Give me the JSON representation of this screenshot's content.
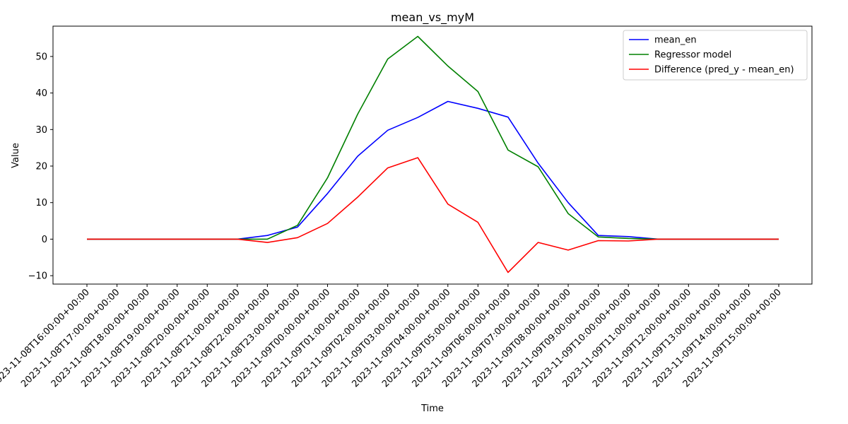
{
  "chart_data": {
    "type": "line",
    "title": "mean_vs_myM",
    "xlabel": "Time",
    "ylabel": "Value",
    "ylim": [
      -12.3,
      58.3
    ],
    "yticks": [
      -10,
      0,
      10,
      20,
      30,
      40,
      50
    ],
    "grid": false,
    "legend_position": "upper right",
    "x": [
      "2023-11-08T16:00:00+00:00",
      "2023-11-08T17:00:00+00:00",
      "2023-11-08T18:00:00+00:00",
      "2023-11-08T19:00:00+00:00",
      "2023-11-08T20:00:00+00:00",
      "2023-11-08T21:00:00+00:00",
      "2023-11-08T22:00:00+00:00",
      "2023-11-08T23:00:00+00:00",
      "2023-11-09T00:00:00+00:00",
      "2023-11-09T01:00:00+00:00",
      "2023-11-09T02:00:00+00:00",
      "2023-11-09T03:00:00+00:00",
      "2023-11-09T04:00:00+00:00",
      "2023-11-09T05:00:00+00:00",
      "2023-11-09T06:00:00+00:00",
      "2023-11-09T07:00:00+00:00",
      "2023-11-09T08:00:00+00:00",
      "2023-11-09T09:00:00+00:00",
      "2023-11-09T10:00:00+00:00",
      "2023-11-09T11:00:00+00:00",
      "2023-11-09T12:00:00+00:00",
      "2023-11-09T13:00:00+00:00",
      "2023-11-09T14:00:00+00:00",
      "2023-11-09T15:00:00+00:00"
    ],
    "series": [
      {
        "name": "mean_en",
        "color": "#0000ff",
        "values": [
          0,
          0,
          0,
          0,
          0,
          0,
          1.0,
          3.3,
          12.5,
          22.7,
          29.8,
          33.3,
          37.7,
          35.8,
          33.4,
          20.8,
          10.0,
          1.0,
          0.7,
          0,
          0,
          0,
          0,
          0
        ]
      },
      {
        "name": "Regressor model",
        "color": "#008000",
        "values": [
          0,
          0,
          0,
          0,
          0,
          0,
          0,
          3.8,
          16.8,
          34.2,
          49.3,
          55.5,
          47.4,
          40.4,
          24.4,
          19.8,
          7.0,
          0.6,
          0.2,
          0,
          0,
          0,
          0,
          0
        ]
      },
      {
        "name": "Difference (pred_y - mean_en)",
        "color": "#ff0000",
        "values": [
          0,
          0,
          0,
          0,
          0,
          0,
          -0.9,
          0.4,
          4.3,
          11.5,
          19.5,
          22.3,
          9.6,
          4.6,
          -9.1,
          -0.9,
          -3.0,
          -0.4,
          -0.5,
          0,
          0,
          0,
          0,
          0
        ]
      }
    ]
  }
}
